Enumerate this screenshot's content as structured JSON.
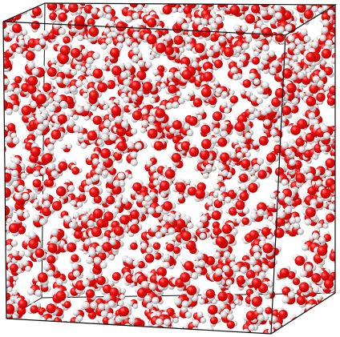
{
  "scene": {
    "subject": "simulation-box-of-water-molecules",
    "colors": {
      "background": "#ffffff",
      "oxygen": "#ee1111",
      "oxygen_shade": "#b00000",
      "hydrogen": "#eeeeee",
      "hydrogen_shade": "#9a9a9a",
      "box_edge": "#111111"
    }
  }
}
